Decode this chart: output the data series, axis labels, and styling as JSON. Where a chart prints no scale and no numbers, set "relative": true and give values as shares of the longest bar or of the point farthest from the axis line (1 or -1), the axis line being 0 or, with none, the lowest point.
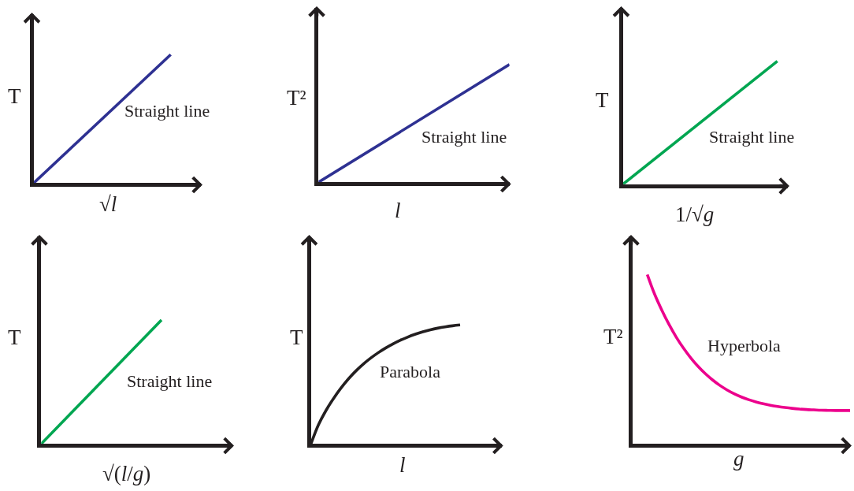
{
  "chart_data": [
    {
      "type": "line",
      "ylabel": "T",
      "xlabel": "√l",
      "categories": [
        null,
        null
      ],
      "series": [
        {
          "name": "Straight line",
          "color": "#2e3192",
          "values": [
            0,
            1
          ]
        }
      ],
      "relative": true,
      "tick_labels": false
    },
    {
      "type": "line",
      "ylabel": "T²",
      "xlabel": "l",
      "categories": [
        null,
        null
      ],
      "series": [
        {
          "name": "Straight line",
          "color": "#2e3192",
          "values": [
            0,
            1
          ]
        }
      ],
      "relative": true,
      "tick_labels": false
    },
    {
      "type": "line",
      "ylabel": "T",
      "xlabel": "1/√g",
      "categories": [
        null,
        null
      ],
      "series": [
        {
          "name": "Straight line",
          "color": "#00a651",
          "values": [
            0,
            1
          ]
        }
      ],
      "relative": true,
      "tick_labels": false
    },
    {
      "type": "line",
      "ylabel": "T",
      "xlabel": "√(l/g)",
      "categories": [
        null,
        null
      ],
      "series": [
        {
          "name": "Straight line",
          "color": "#00a651",
          "values": [
            0,
            1
          ]
        }
      ],
      "relative": true,
      "tick_labels": false
    },
    {
      "type": "line",
      "ylabel": "T",
      "xlabel": "l",
      "categories": [
        null,
        null,
        null,
        null,
        null,
        null,
        null,
        null,
        null,
        null,
        null,
        null,
        null,
        null,
        null,
        null,
        null,
        null,
        null,
        null,
        null
      ],
      "series": [
        {
          "name": "Parabola",
          "color": "#231f20",
          "values": [
            0,
            0.16,
            0.28,
            0.38,
            0.468,
            0.545,
            0.612,
            0.67,
            0.721,
            0.766,
            0.806,
            0.841,
            0.872,
            0.899,
            0.922,
            0.942,
            0.959,
            0.973,
            0.984,
            0.993,
            1
          ]
        }
      ],
      "relative": true,
      "tick_labels": false
    },
    {
      "type": "line",
      "ylabel": "T²",
      "xlabel": "g",
      "categories": [
        null,
        null,
        null,
        null,
        null,
        null,
        null,
        null,
        null,
        null,
        null,
        null,
        null,
        null,
        null,
        null,
        null,
        null,
        null,
        null,
        null,
        null,
        null,
        null,
        null,
        null,
        null,
        null,
        null,
        null,
        null
      ],
      "series": [
        {
          "name": "Hyperbola",
          "color": "#ec008c",
          "values": [
            null,
            null,
            1,
            0.885,
            0.79,
            0.705,
            0.63,
            0.565,
            0.508,
            0.458,
            0.415,
            0.378,
            0.346,
            0.319,
            0.296,
            0.277,
            0.261,
            0.248,
            0.237,
            0.228,
            0.221,
            0.215,
            0.21,
            0.206,
            0.203,
            0.201,
            0.199,
            0.198,
            0.197,
            0.197,
            0.197
          ]
        }
      ],
      "relative": true,
      "tick_labels": false
    }
  ]
}
